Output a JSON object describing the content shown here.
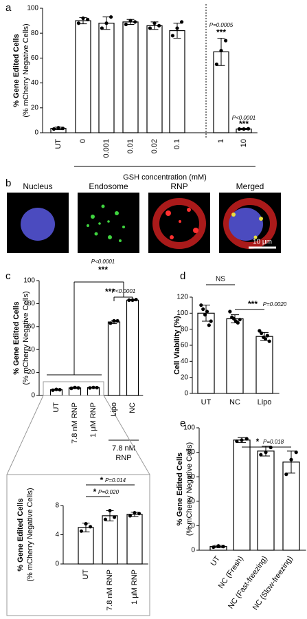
{
  "chart_data": [
    {
      "type": "bar",
      "panel": "a",
      "y_label": "% Gene Edited Cells",
      "y_label_sub": "(% mCherry Negative Cells)",
      "x_label": "GSH concentration (mM)",
      "categories": [
        "UT",
        "0",
        "0.001",
        "0.01",
        "0.02",
        "0.1",
        "1",
        "10"
      ],
      "values": [
        3.5,
        90,
        88,
        89,
        86,
        82,
        65,
        3
      ],
      "errors": [
        1,
        2.5,
        5,
        2,
        3,
        6,
        11,
        0.5
      ],
      "points": [
        [
          3,
          4,
          3.5
        ],
        [
          88,
          92,
          91
        ],
        [
          84,
          88,
          93
        ],
        [
          87,
          90,
          89
        ],
        [
          84,
          88,
          86
        ],
        [
          78,
          84,
          89
        ],
        [
          55,
          66,
          74
        ],
        [
          3,
          3,
          3.2
        ]
      ],
      "ylim": [
        0,
        100
      ],
      "yticks": [
        0,
        20,
        40,
        60,
        80,
        100
      ],
      "color": "#ffffff",
      "annotations": [
        "P=0.0005",
        "***",
        "P<0.0001",
        "***"
      ]
    },
    {
      "type": "bar",
      "panel": "c",
      "y_label": "% Gene Edited Cells",
      "y_label_sub": "(% mCherry Negative Cells)",
      "group_label": [
        "7.8 nM",
        "RNP"
      ],
      "categories": [
        "UT",
        "7.8 nM RNP",
        "1 μM RNP",
        "Lipo",
        "NC"
      ],
      "values": [
        5,
        6.6,
        6.8,
        64,
        83
      ],
      "errors": [
        0.5,
        0.6,
        0.3,
        1.5,
        0.5
      ],
      "points": [
        [
          4.6,
          5.3,
          5.0
        ],
        [
          6.2,
          7.0,
          6.6
        ],
        [
          6.6,
          7.0,
          6.8
        ],
        [
          63,
          65,
          65
        ],
        [
          83,
          83,
          83.5
        ]
      ],
      "ylim": [
        0,
        100
      ],
      "yticks": [
        0,
        20,
        40,
        60,
        80,
        100
      ],
      "color": "#ffffff",
      "annotations": [
        "P<0.0001",
        "***",
        "***",
        "P<0.0001"
      ]
    },
    {
      "type": "bar",
      "y_label": "% Gene Edited Cells",
      "y_label_sub": "(% mCherry Negative Cells)",
      "categories": [
        "UT",
        "7.8 nM RNP",
        "1 μM RNP"
      ],
      "values": [
        5.0,
        6.6,
        6.8
      ],
      "errors": [
        0.6,
        0.7,
        0.3
      ],
      "points": [
        [
          4.5,
          5.5,
          5.1
        ],
        [
          6.1,
          7.3,
          6.4
        ],
        [
          6.6,
          7.0,
          6.9
        ]
      ],
      "ylim": [
        0,
        8
      ],
      "yticks": [
        0,
        4,
        8
      ],
      "color": "#ffffff",
      "annotations": [
        "*",
        "P=0.020",
        "*",
        "P=0.014"
      ]
    },
    {
      "type": "bar",
      "panel": "d",
      "y_label": "Cell Viability (%)",
      "categories": [
        "UT",
        "NC",
        "Lipo"
      ],
      "values": [
        100,
        93,
        71
      ],
      "errors": [
        10,
        5,
        5
      ],
      "points": [
        [
          110,
          105,
          98,
          102,
          85,
          90
        ],
        [
          102,
          95,
          93,
          90,
          88,
          92
        ],
        [
          78,
          75,
          70,
          68,
          72,
          65
        ]
      ],
      "ylim": [
        0,
        120
      ],
      "yticks": [
        0,
        20,
        40,
        60,
        80,
        100,
        120
      ],
      "color": "#ffffff",
      "annotations": [
        "NS",
        "***",
        "P=0.0020"
      ]
    },
    {
      "type": "bar",
      "panel": "e",
      "y_label": "% Gene Edited Cells",
      "y_label_sub": "(% mCherry Negative Cells)",
      "categories": [
        "UT",
        "NC (Fresh)",
        "NC (Fast-freezing)",
        "NC (Slow-freezing)"
      ],
      "values": [
        3,
        90,
        81,
        72
      ],
      "errors": [
        1,
        2,
        4,
        9
      ],
      "points": [
        [
          2.5,
          3.5,
          3
        ],
        [
          89,
          90,
          91
        ],
        [
          78,
          80,
          84
        ],
        [
          62,
          74,
          80
        ]
      ],
      "ylim": [
        0,
        100
      ],
      "yticks": [
        0,
        20,
        40,
        60,
        80,
        100
      ],
      "color": "#ffffff",
      "annotations": [
        "*",
        "P=0.018"
      ]
    }
  ],
  "figure_b": {
    "panel": "b",
    "labels": [
      "Nucleus",
      "Endosome",
      "RNP",
      "Merged"
    ],
    "scale_bar": "10 μm"
  }
}
